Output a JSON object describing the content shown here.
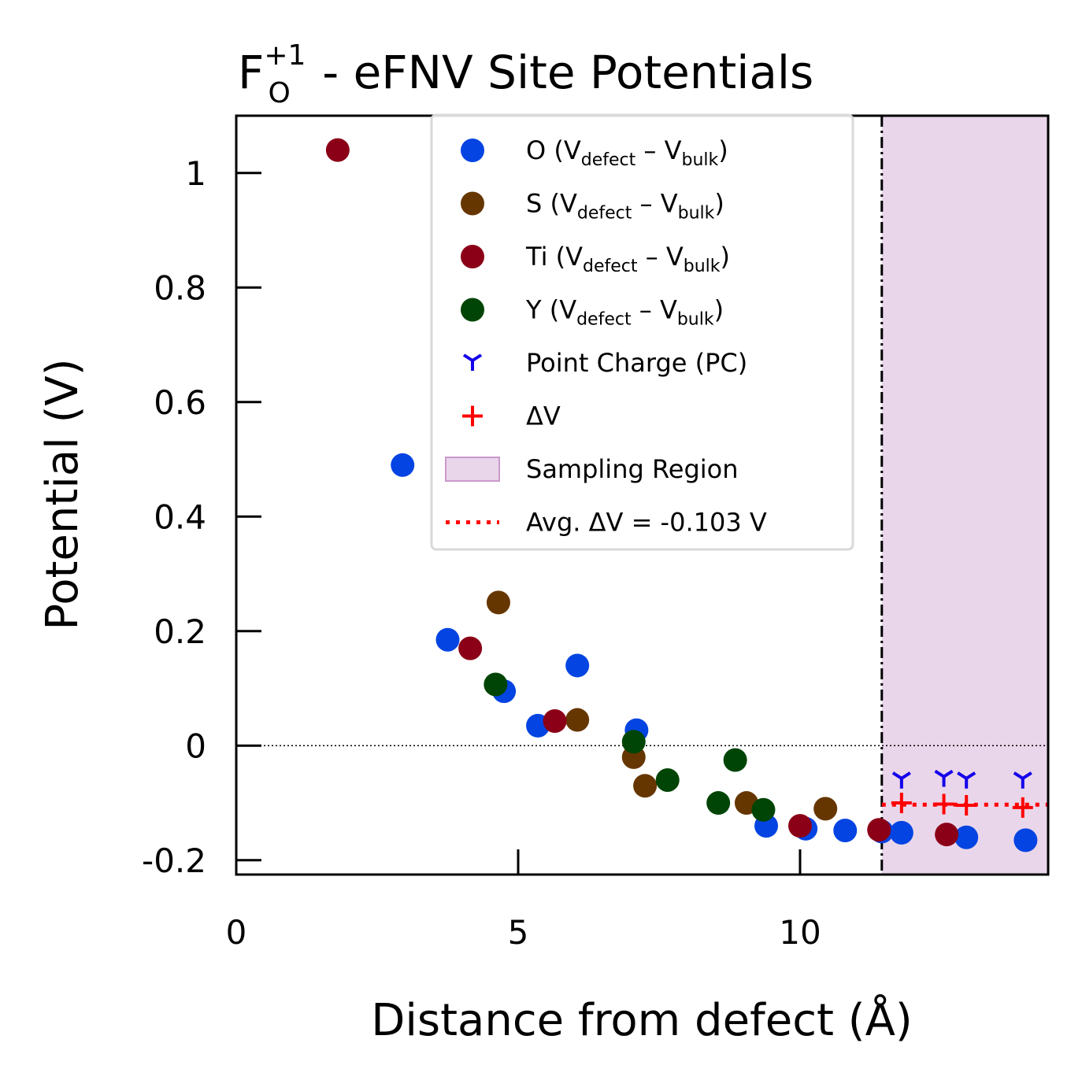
{
  "chart_data": {
    "type": "scatter",
    "title": {
      "main": "F",
      "superscript": "+1",
      "subscript": "O",
      "rest": " - eFNV Site Potentials"
    },
    "xlabel": "Distance from defect (Å)",
    "ylabel": "Potential (V)",
    "xlim": [
      0,
      14.4
    ],
    "ylim": [
      -0.225,
      1.1
    ],
    "xticks": [
      0,
      5,
      10
    ],
    "xtick_labels": [
      "0",
      "5",
      "10"
    ],
    "yticks": [
      -0.2,
      0,
      0.2,
      0.4,
      0.6,
      0.8,
      1.0
    ],
    "ytick_labels": [
      "-0.2",
      "0",
      "0.2",
      "0.4",
      "0.6",
      "0.8",
      "1"
    ],
    "grid": false,
    "legend_position": "top-center",
    "sampling_region": [
      11.45,
      14.4
    ],
    "sampling_boundary_x": 11.45,
    "zero_line_y": 0,
    "avg_delta_v": -0.103,
    "colors": {
      "O": "#0444e2",
      "S": "#663601",
      "Ti": "#8b0017",
      "Y": "#004505",
      "pc": "#1400ea",
      "delta": "#ff0000",
      "region": "#ead6ea",
      "region_edge": "#cc99cc"
    },
    "series": [
      {
        "name": "O",
        "legend_label": {
          "species": "O",
          "open": " (V",
          "sub1": "defect",
          "mid": " – V",
          "sub2": "bulk",
          "close": ")"
        },
        "marker": "circle",
        "points": [
          [
            2.95,
            0.49
          ],
          [
            3.75,
            0.185
          ],
          [
            4.75,
            0.095
          ],
          [
            5.35,
            0.035
          ],
          [
            6.05,
            0.14
          ],
          [
            7.1,
            0.027
          ],
          [
            9.4,
            -0.14
          ],
          [
            10.1,
            -0.145
          ],
          [
            10.8,
            -0.148
          ],
          [
            11.45,
            -0.15
          ],
          [
            11.8,
            -0.152
          ],
          [
            12.95,
            -0.16
          ],
          [
            14.0,
            -0.165
          ]
        ]
      },
      {
        "name": "S",
        "legend_label": {
          "species": "S",
          "open": " (V",
          "sub1": "defect",
          "mid": " – V",
          "sub2": "bulk",
          "close": ")"
        },
        "marker": "circle",
        "points": [
          [
            4.65,
            0.25
          ],
          [
            6.05,
            0.045
          ],
          [
            7.05,
            -0.02
          ],
          [
            7.25,
            -0.07
          ],
          [
            9.05,
            -0.1
          ],
          [
            10.45,
            -0.11
          ]
        ]
      },
      {
        "name": "Ti",
        "legend_label": {
          "species": "Ti",
          "open": " (V",
          "sub1": "defect",
          "mid": " – V",
          "sub2": "bulk",
          "close": ")"
        },
        "marker": "circle",
        "points": [
          [
            1.8,
            1.04
          ],
          [
            4.15,
            0.17
          ],
          [
            5.65,
            0.043
          ],
          [
            10.0,
            -0.14
          ],
          [
            11.4,
            -0.147
          ],
          [
            12.6,
            -0.155
          ]
        ]
      },
      {
        "name": "Y",
        "legend_label": {
          "species": "Y",
          "open": " (V",
          "sub1": "defect",
          "mid": " – V",
          "sub2": "bulk",
          "close": ")"
        },
        "marker": "circle",
        "points": [
          [
            4.6,
            0.107
          ],
          [
            7.05,
            0.007
          ],
          [
            7.65,
            -0.06
          ],
          [
            8.55,
            -0.1
          ],
          [
            8.85,
            -0.025
          ],
          [
            9.35,
            -0.112
          ]
        ]
      },
      {
        "name": "Point Charge (PC)",
        "marker": "tri_down",
        "points": [
          [
            11.8,
            -0.057
          ],
          [
            12.55,
            -0.054
          ],
          [
            12.95,
            -0.057
          ],
          [
            13.95,
            -0.057
          ]
        ]
      },
      {
        "name": "ΔV",
        "marker": "plus",
        "points": [
          [
            11.8,
            -0.1
          ],
          [
            12.55,
            -0.102
          ],
          [
            12.95,
            -0.104
          ],
          [
            13.95,
            -0.108
          ]
        ]
      }
    ],
    "legend": [
      {
        "key": "O",
        "type": "circle"
      },
      {
        "key": "S",
        "type": "circle"
      },
      {
        "key": "Ti",
        "type": "circle"
      },
      {
        "key": "Y",
        "type": "circle"
      },
      {
        "key": "pc",
        "type": "tri_down",
        "label": "Point Charge (PC)"
      },
      {
        "key": "delta",
        "type": "plus",
        "label": "ΔV"
      },
      {
        "key": "region",
        "type": "patch",
        "label": "Sampling Region"
      },
      {
        "key": "avg",
        "type": "dotted",
        "label": "Avg. ΔV = -0.103 V"
      }
    ]
  }
}
